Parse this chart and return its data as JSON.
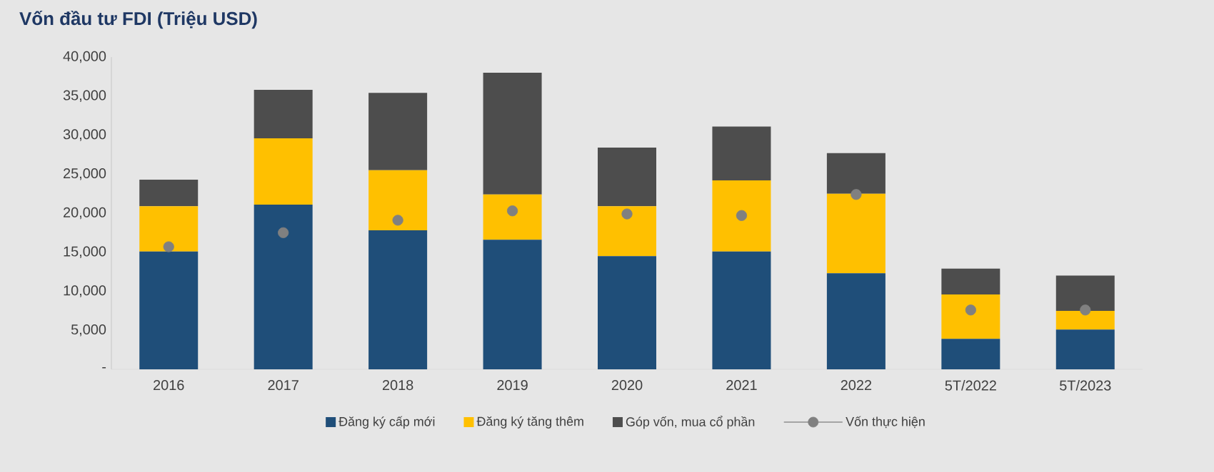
{
  "chart_data": {
    "type": "bar",
    "title": "Vốn đầu tư FDI (Triệu USD)",
    "stacked": true,
    "legend": "bottom",
    "categories": [
      "2016",
      "2017",
      "2018",
      "2019",
      "2020",
      "2021",
      "2022",
      "5T/2022",
      "5T/2023"
    ],
    "ylim": [
      0,
      40000
    ],
    "yticks": [
      {
        "value": 0,
        "label": "-"
      },
      {
        "value": 5000,
        "label": "5,000"
      },
      {
        "value": 10000,
        "label": "10,000"
      },
      {
        "value": 15000,
        "label": "15,000"
      },
      {
        "value": 20000,
        "label": "20,000"
      },
      {
        "value": 25000,
        "label": "25,000"
      },
      {
        "value": 30000,
        "label": "30,000"
      },
      {
        "value": 35000,
        "label": "35,000"
      },
      {
        "value": 40000,
        "label": "40,000"
      }
    ],
    "series": [
      {
        "name": "Đăng ký cấp mới",
        "color": "#1f4e79",
        "values": [
          15100,
          21100,
          17800,
          16600,
          14500,
          15100,
          12300,
          3900,
          5100
        ]
      },
      {
        "name": "Đăng ký tăng thêm",
        "color": "#ffc000",
        "values": [
          5800,
          8500,
          7700,
          5800,
          6400,
          9100,
          10200,
          5700,
          2400
        ]
      },
      {
        "name": "Góp vốn, mua cổ phần",
        "color": "#4d4d4d",
        "values": [
          3400,
          6200,
          9900,
          15600,
          7500,
          6900,
          5200,
          3300,
          4500
        ]
      },
      {
        "name": "Vốn thực hiện",
        "type": "scatter",
        "marker": "circle",
        "color": "#808080",
        "values": [
          15700,
          17500,
          19100,
          20300,
          19900,
          19700,
          22400,
          7600,
          7600
        ]
      }
    ]
  }
}
